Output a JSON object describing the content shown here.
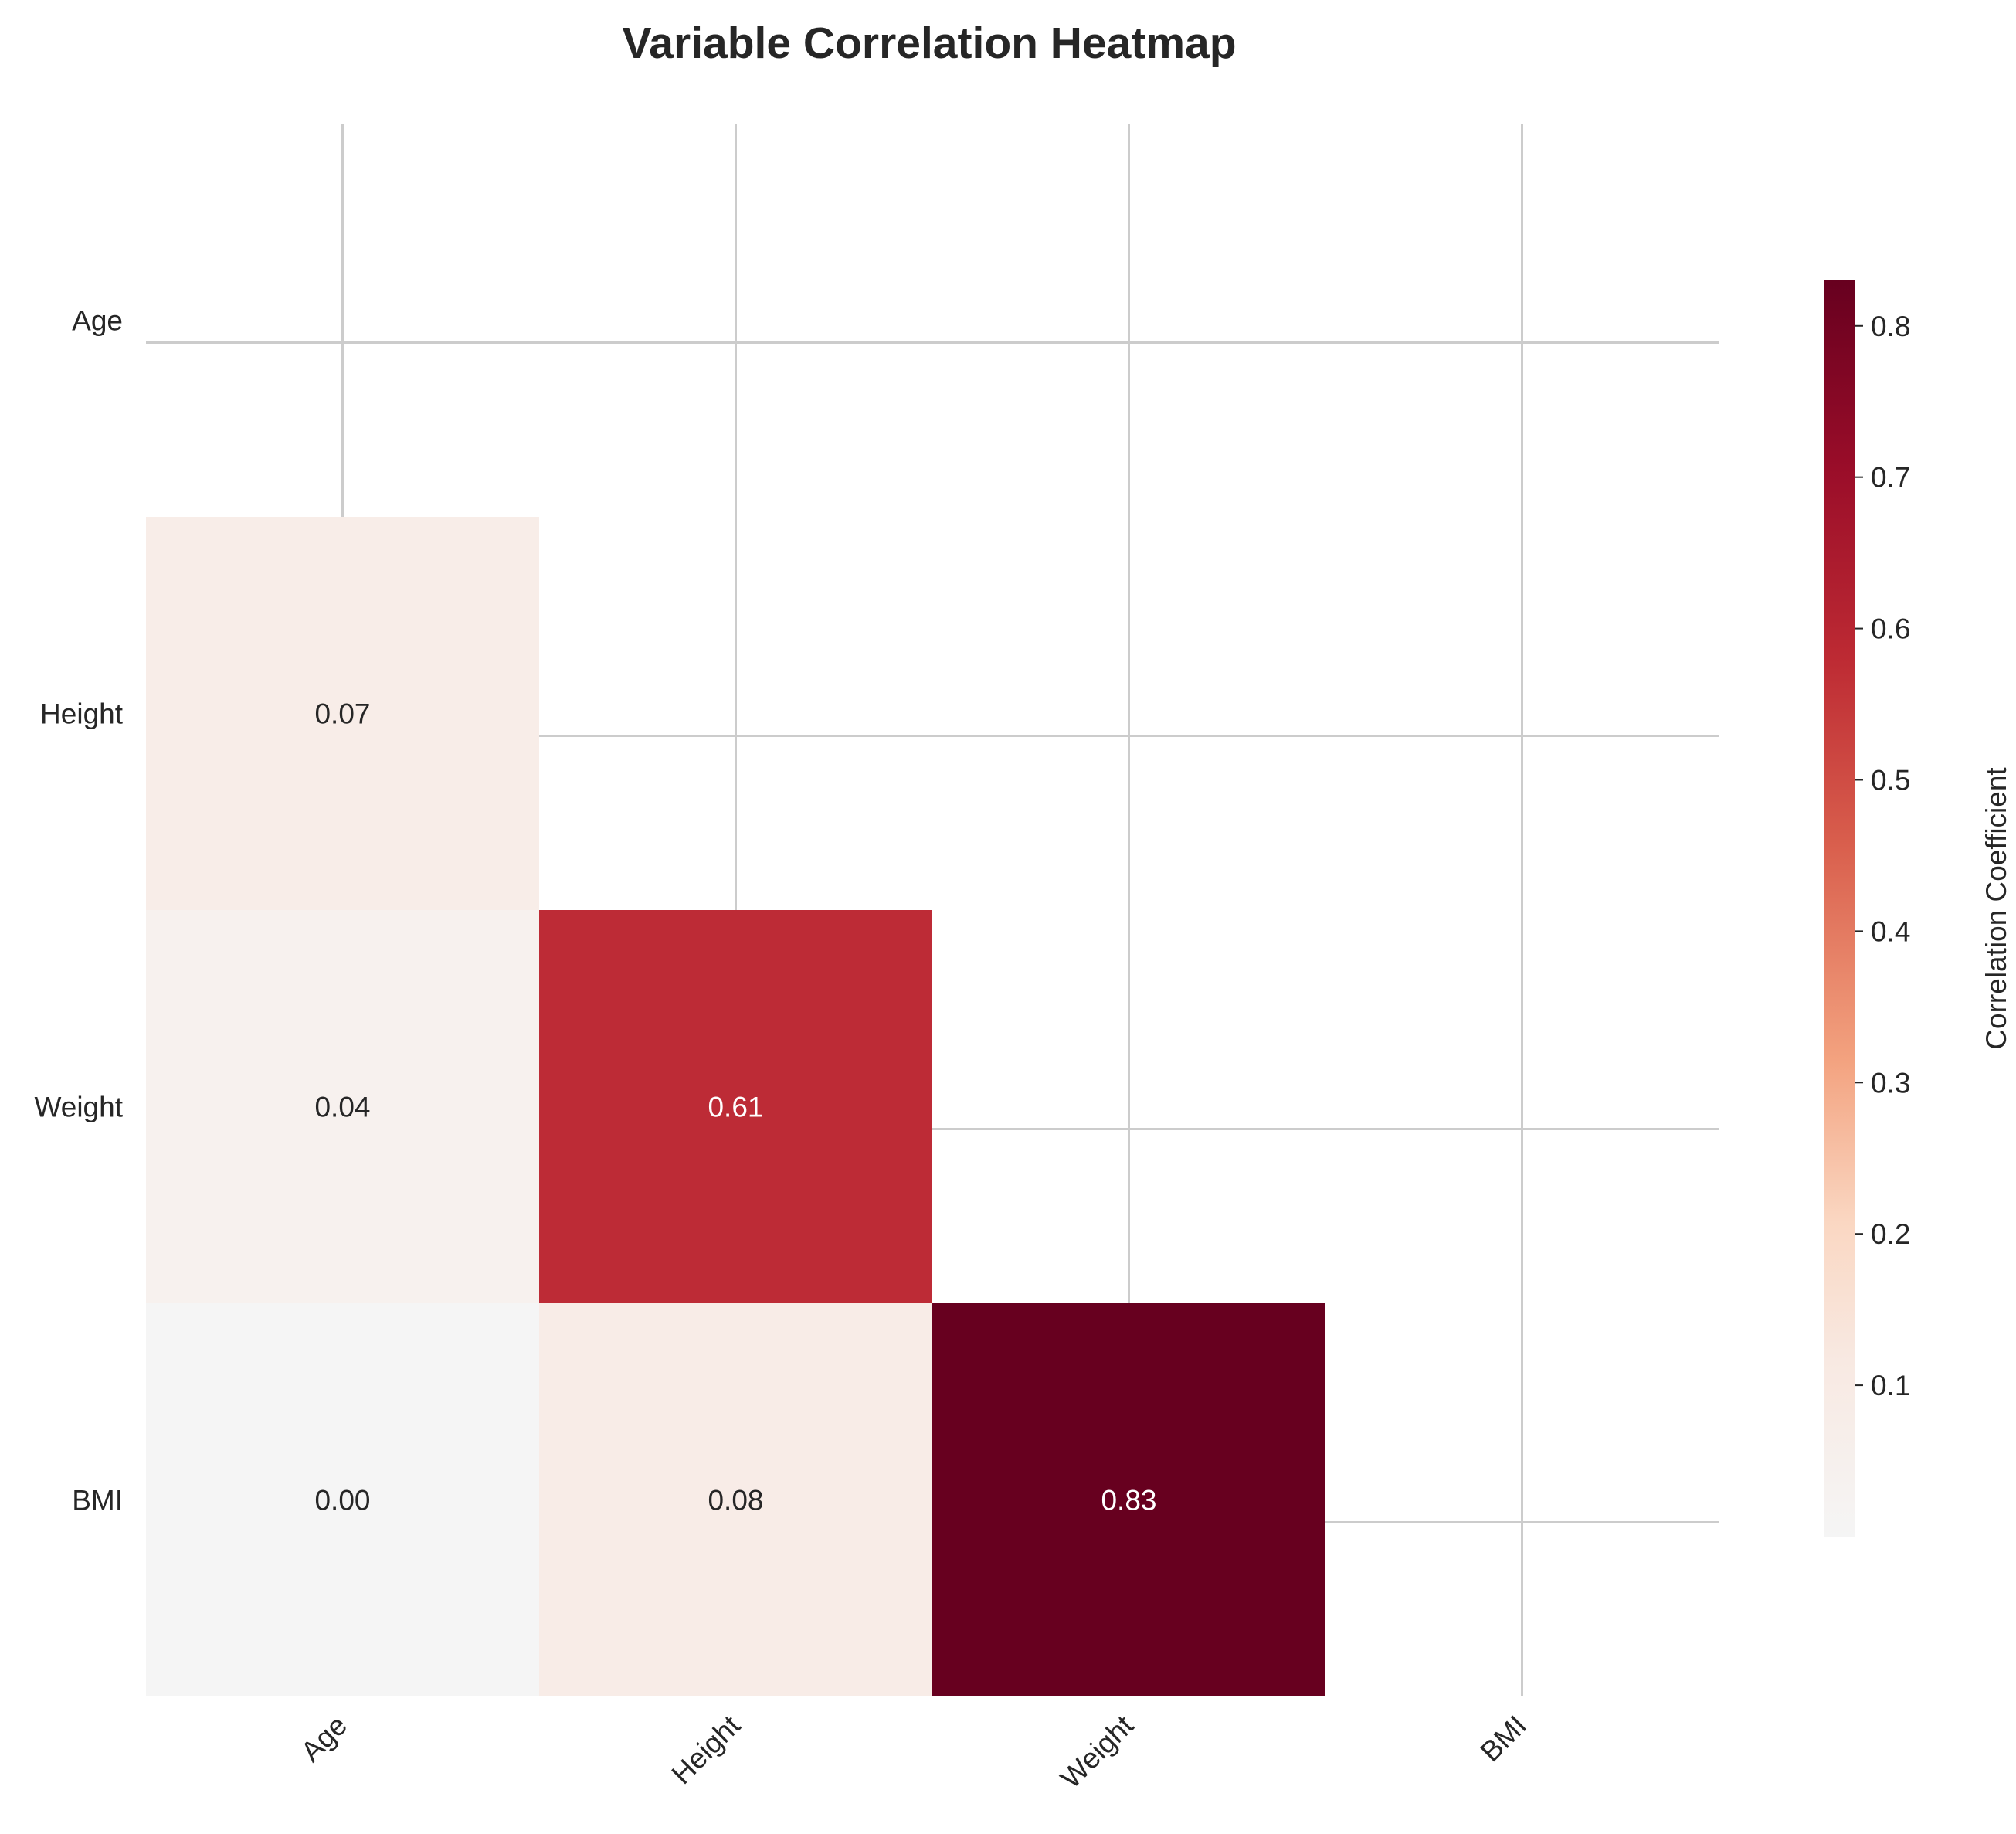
{
  "chart_data": {
    "type": "heatmap",
    "title": "Variable Correlation Heatmap",
    "variables": [
      "Age",
      "Height",
      "Weight",
      "BMI"
    ],
    "mask": "upper-triangle-including-diagonal",
    "cells": [
      {
        "row": "Height",
        "col": "Age",
        "value": 0.07,
        "label": "0.07"
      },
      {
        "row": "Weight",
        "col": "Age",
        "value": 0.04,
        "label": "0.04"
      },
      {
        "row": "Weight",
        "col": "Height",
        "value": 0.61,
        "label": "0.61"
      },
      {
        "row": "BMI",
        "col": "Age",
        "value": 0.0,
        "label": "0.00"
      },
      {
        "row": "BMI",
        "col": "Height",
        "value": 0.08,
        "label": "0.08"
      },
      {
        "row": "BMI",
        "col": "Weight",
        "value": 0.83,
        "label": "0.83"
      }
    ],
    "colormap": "RdBu_r (positive half)",
    "colorbar": {
      "label": "Correlation Coefficient",
      "range": [
        0.0,
        0.83
      ],
      "ticks": [
        "0.1",
        "0.2",
        "0.3",
        "0.4",
        "0.5",
        "0.6",
        "0.7",
        "0.8"
      ]
    },
    "grid": true,
    "colors": {
      "grid": "#cccccc",
      "text_dark": "#262626",
      "text_light": "#ffffff"
    }
  }
}
